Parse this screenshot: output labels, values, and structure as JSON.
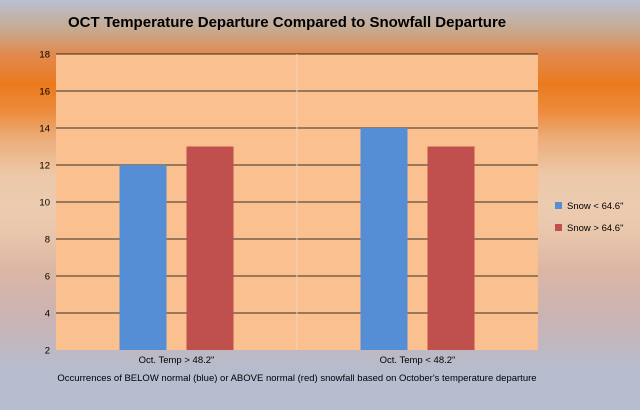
{
  "chart_data": {
    "type": "bar",
    "title": "OCT Temperature Departure Compared to Snowfall Departure",
    "xlabel": "Occurrences of BELOW normal (blue) or ABOVE normal (red) snowfall based on October's temperature departure",
    "ylabel": "",
    "categories": [
      "Oct. Temp > 48.2\"",
      "Oct. Temp < 48.2\""
    ],
    "series": [
      {
        "name": "Snow < 64.6\"",
        "values": [
          12,
          14
        ],
        "color": "#558ed5"
      },
      {
        "name": "Snow > 64.6\"",
        "values": [
          13,
          13
        ],
        "color": "#c0504d"
      }
    ],
    "ylim": [
      2,
      18
    ],
    "yticks": [
      2,
      4,
      6,
      8,
      10,
      12,
      14,
      16,
      18
    ],
    "grid": true,
    "legend_position": "right",
    "plot_background": "#fac090",
    "grid_color": "#000000"
  }
}
